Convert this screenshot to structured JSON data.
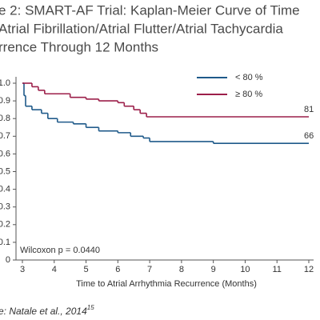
{
  "chart_data": {
    "type": "step",
    "title": [
      "e 2: SMART-AF Trial: Kaplan-Meier Curve of Time",
      "Atrial Fibrillation/Atrial Flutter/Atrial Tachycardia",
      "rrence Through 12 Months"
    ],
    "x_label": "Time to Atrial Arrhythmia Recurrence (Months)",
    "annotation": "Wilcoxon p = 0.0440",
    "source": "e: Natale et al., 2014",
    "source_ref": "15",
    "xlim": [
      3,
      12
    ],
    "xticks": [
      3,
      4,
      5,
      6,
      7,
      8,
      9,
      10,
      11,
      12
    ],
    "ylim": [
      0,
      1
    ],
    "yticks": [
      0,
      0.1,
      0.2,
      0.3,
      0.4,
      0.5,
      0.6,
      0.7,
      0.8,
      0.9,
      {
        "value": 1,
        "label": "1.0"
      }
    ],
    "series": [
      {
        "name": "< 80 %",
        "color": "#1f5a8a",
        "end_label": "66",
        "x": [
          3,
          3.05,
          3.1,
          3.3,
          3.6,
          3.8,
          4.1,
          4.6,
          5.0,
          5.4,
          6.0,
          6.4,
          6.8,
          7.0,
          9.0,
          12
        ],
        "values": [
          1.0,
          0.93,
          0.87,
          0.85,
          0.83,
          0.8,
          0.78,
          0.77,
          0.75,
          0.73,
          0.72,
          0.7,
          0.69,
          0.67,
          0.66,
          0.66
        ]
      },
      {
        "name": "≥ 80 %",
        "color": "#9c1f4a",
        "end_label": "81",
        "x": [
          3,
          3.3,
          3.5,
          3.7,
          4.5,
          5.0,
          5.4,
          6.0,
          6.2,
          6.5,
          6.7,
          6.9,
          12
        ],
        "values": [
          1.0,
          0.98,
          0.96,
          0.94,
          0.92,
          0.91,
          0.9,
          0.89,
          0.87,
          0.85,
          0.83,
          0.81,
          0.81
        ]
      }
    ],
    "legend": "top-right"
  }
}
